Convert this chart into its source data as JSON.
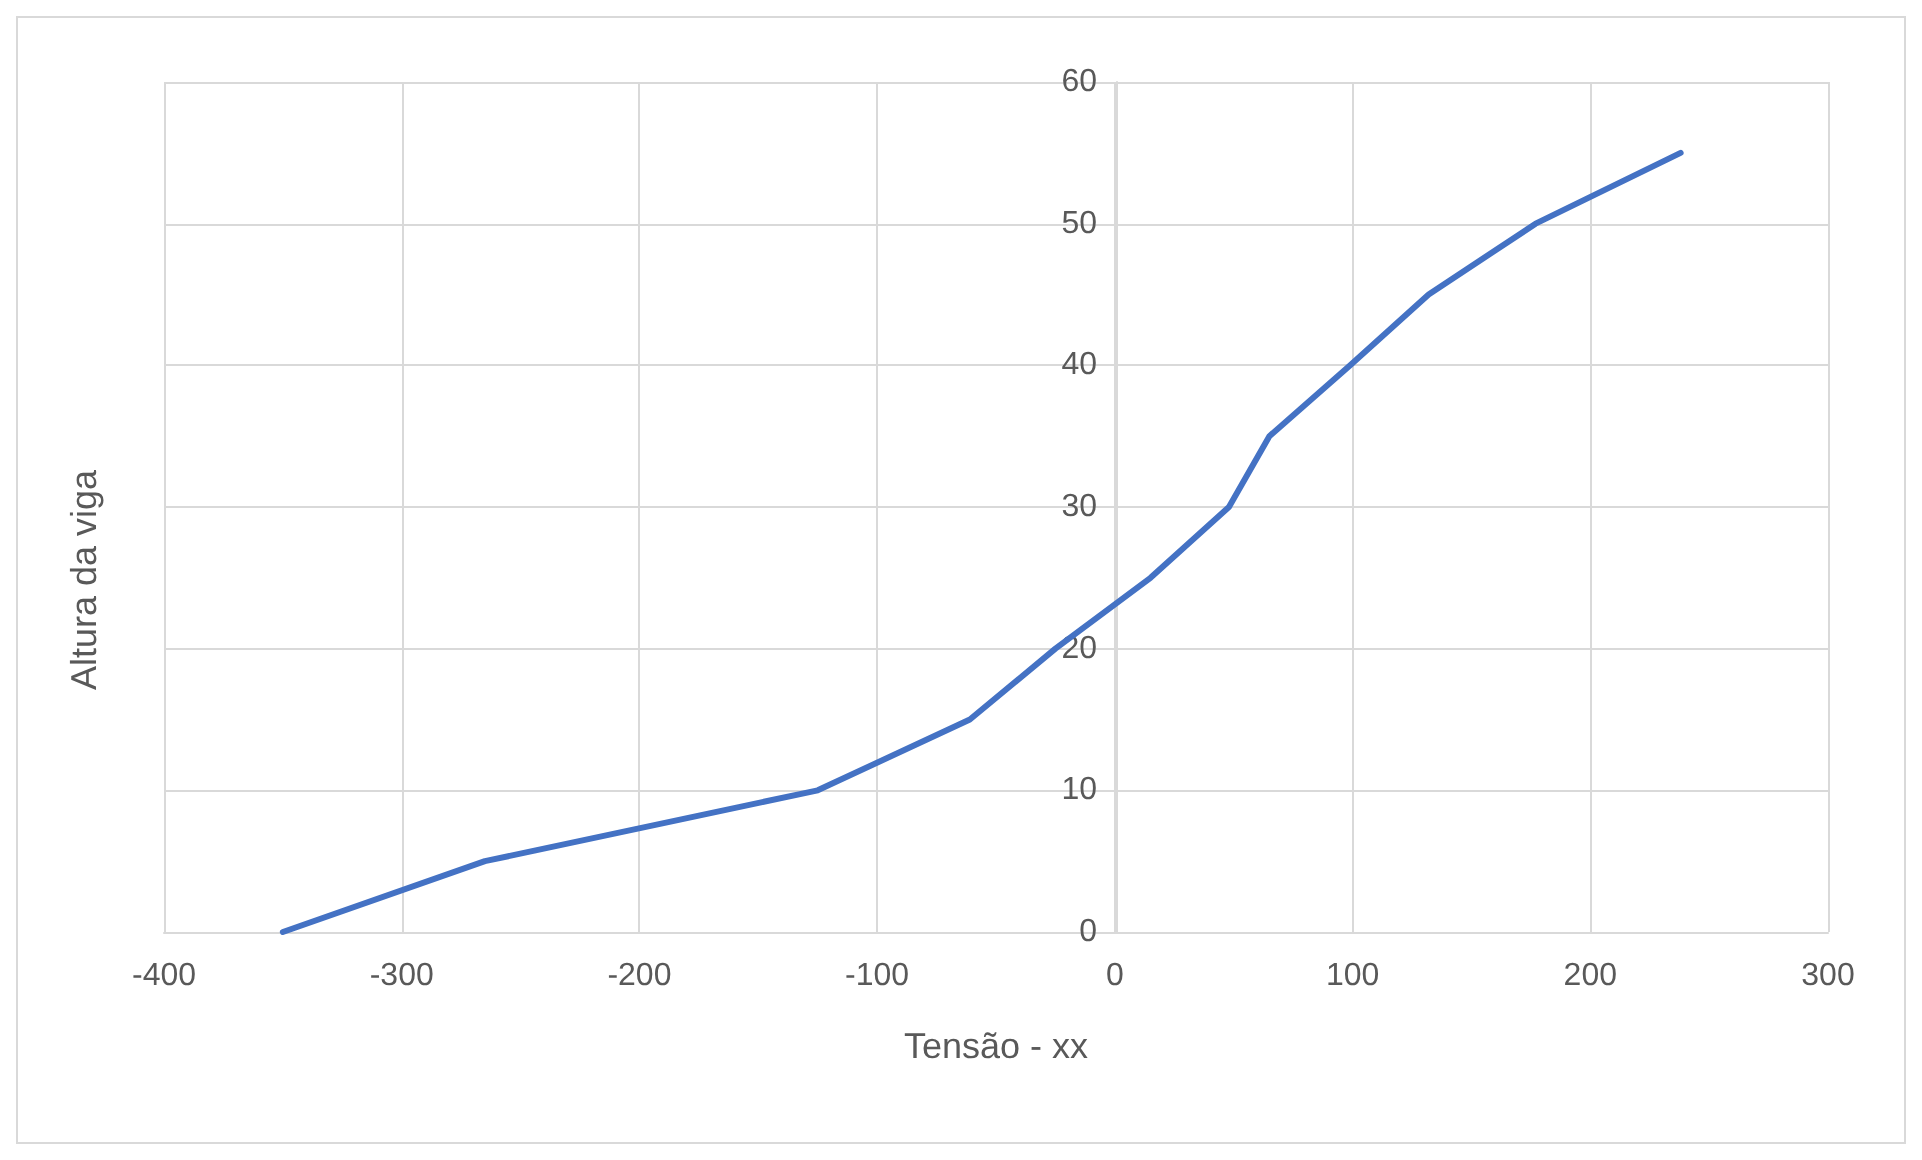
{
  "chart_data": {
    "type": "line",
    "xlabel": "Tensão - xx",
    "ylabel": "Altura da viga",
    "x": [
      -350,
      -265,
      -125,
      -61,
      -25,
      15,
      48,
      65,
      99,
      132,
      177,
      238
    ],
    "series": [
      {
        "color": "#4472c4",
        "values": [
          0,
          5,
          10,
          15,
          20,
          25,
          30,
          35,
          40,
          45,
          50,
          55
        ]
      }
    ],
    "xlim": [
      -400,
      300
    ],
    "xticks": [
      -400,
      -300,
      -200,
      -100,
      0,
      100,
      200,
      300
    ],
    "ylim": [
      0,
      60
    ],
    "yticks": [
      0,
      10,
      20,
      30,
      40,
      50,
      60
    ],
    "grid": true,
    "marker": "none",
    "line_style": "solid"
  }
}
